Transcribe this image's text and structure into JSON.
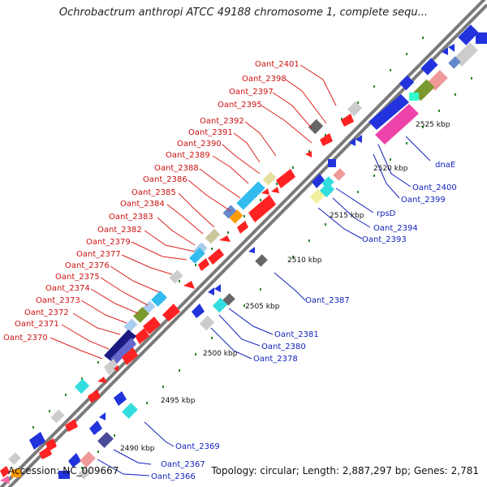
{
  "title": "Ochrobactrum anthropi ATCC 49188 chromosome 1, complete sequ...",
  "footer": {
    "accession": "Accession: NC_009667",
    "topology": "Topology: circular; Length: 2,887,297 bp; Genes: 2,781"
  },
  "colors": {
    "backbone": "#7a7a7a",
    "label_forward": "#cc1111",
    "label_reverse": "#1122bb",
    "tick": "#2a8a2a"
  },
  "kbp_labels": [
    "2490 kbp",
    "2495 kbp",
    "2500 kbp",
    "2505 kbp",
    "2510 kbp",
    "2515 kbp",
    "2520 kbp",
    "2525 kbp"
  ],
  "forward_genes": [
    "Oant_2401",
    "Oant_2398",
    "Oant_2397",
    "Oant_2395",
    "Oant_2392",
    "Oant_2391",
    "Oant_2390",
    "Oant_2389",
    "Oant_2388",
    "Oant_2386",
    "Oant_2385",
    "Oant_2384",
    "Oant_2383",
    "Oant_2382",
    "Oant_2379",
    "Oant_2377",
    "Oant_2376",
    "Oant_2375",
    "Oant_2374",
    "Oant_2373",
    "Oant_2372",
    "Oant_2371",
    "Oant_2370"
  ],
  "reverse_genes": [
    "dnaE",
    "Oant_2400",
    "Oant_2399",
    "rpsD",
    "Oant_2394",
    "Oant_2393",
    "Oant_2387",
    "Oant_2381",
    "Oant_2380",
    "Oant_2378",
    "Oant_2369",
    "Oant_2367",
    "Oant_2366"
  ]
}
